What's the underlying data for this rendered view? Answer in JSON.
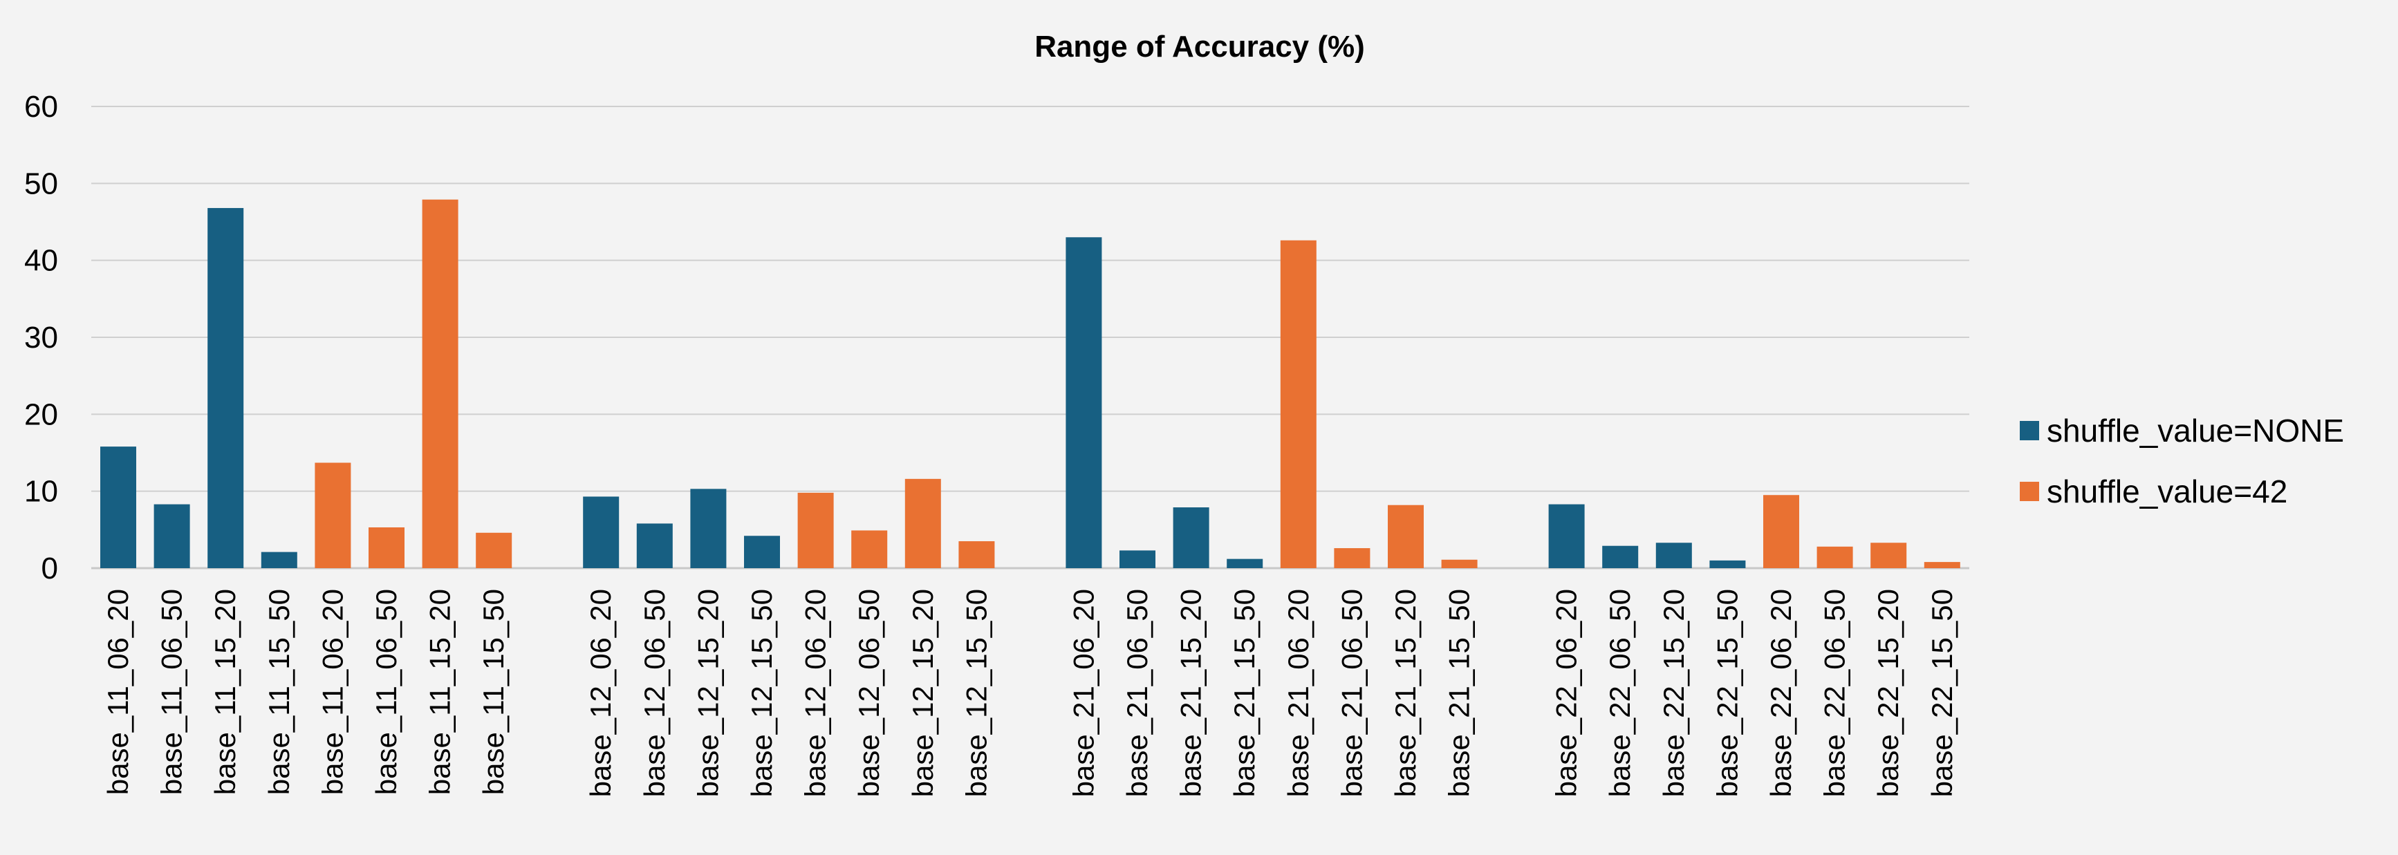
{
  "chart_data": {
    "type": "bar",
    "title": "Range of Accuracy (%)",
    "xlabel": "",
    "ylabel": "",
    "ylim": [
      0,
      60
    ],
    "yticks": [
      0,
      10,
      20,
      30,
      40,
      50,
      60
    ],
    "grid": true,
    "legend_position": "right",
    "groups": [
      {
        "categories": [
          "base_11_06_20",
          "base_11_06_50",
          "base_11_15_20",
          "base_11_15_50",
          "base_11_06_20",
          "base_11_06_50",
          "base_11_15_20",
          "base_11_15_50"
        ],
        "values": [
          15.8,
          8.3,
          46.8,
          2.1,
          13.7,
          5.3,
          47.9,
          4.6
        ],
        "series": [
          "NONE",
          "NONE",
          "NONE",
          "NONE",
          "42",
          "42",
          "42",
          "42"
        ]
      },
      {
        "categories": [
          "base_12_06_20",
          "base_12_06_50",
          "base_12_15_20",
          "base_12_15_50",
          "base_12_06_20",
          "base_12_06_50",
          "base_12_15_20",
          "base_12_15_50"
        ],
        "values": [
          9.3,
          5.8,
          10.3,
          4.2,
          9.8,
          4.9,
          11.6,
          3.5
        ],
        "series": [
          "NONE",
          "NONE",
          "NONE",
          "NONE",
          "42",
          "42",
          "42",
          "42"
        ]
      },
      {
        "categories": [
          "base_21_06_20",
          "base_21_06_50",
          "base_21_15_20",
          "base_21_15_50",
          "base_21_06_20",
          "base_21_06_50",
          "base_21_15_20",
          "base_21_15_50"
        ],
        "values": [
          43.0,
          2.3,
          7.9,
          1.2,
          42.6,
          2.6,
          8.2,
          1.1
        ],
        "series": [
          "NONE",
          "NONE",
          "NONE",
          "NONE",
          "42",
          "42",
          "42",
          "42"
        ]
      },
      {
        "categories": [
          "base_22_06_20",
          "base_22_06_50",
          "base_22_15_20",
          "base_22_15_50",
          "base_22_06_20",
          "base_22_06_50",
          "base_22_15_20",
          "base_22_15_50"
        ],
        "values": [
          8.3,
          2.9,
          3.3,
          1.0,
          9.5,
          2.8,
          3.3,
          0.8
        ],
        "series": [
          "NONE",
          "NONE",
          "NONE",
          "NONE",
          "42",
          "42",
          "42",
          "42"
        ]
      }
    ],
    "legend": [
      {
        "key": "NONE",
        "name": "shuffle_value=NONE",
        "color": "#175f82"
      },
      {
        "key": "42",
        "name": "shuffle_value=42",
        "color": "#e97132"
      }
    ]
  }
}
